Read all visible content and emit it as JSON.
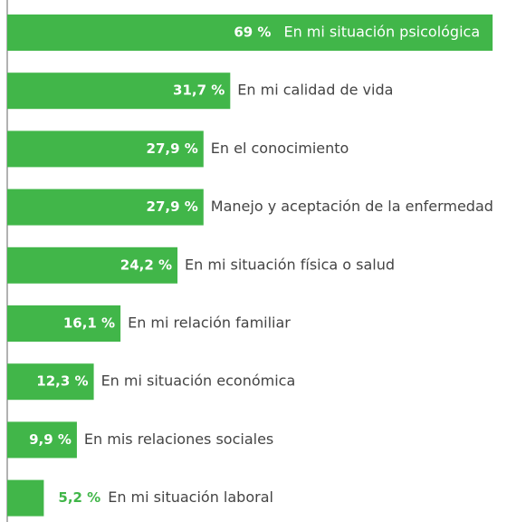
{
  "chart_data": {
    "type": "bar",
    "orientation": "horizontal",
    "color": "#41b649",
    "categories": [
      "En mi situación psicológica",
      "En mi calidad de vida",
      "En el conocimiento",
      "Manejo y aceptación de la enfermedad",
      "En mi situación física o salud",
      "En mi relación familiar",
      "En mi situación económica",
      "En mis relaciones sociales",
      "En mi situación laboral"
    ],
    "values": [
      69,
      31.7,
      27.9,
      27.9,
      24.2,
      16.1,
      12.3,
      9.9,
      5.2
    ],
    "value_labels": [
      "69 %",
      "31,7 %",
      "27,9 %",
      "27,9 %",
      "24,2 %",
      "16,1 %",
      "12,3 %",
      "9,9 %",
      "5,2 %"
    ]
  }
}
